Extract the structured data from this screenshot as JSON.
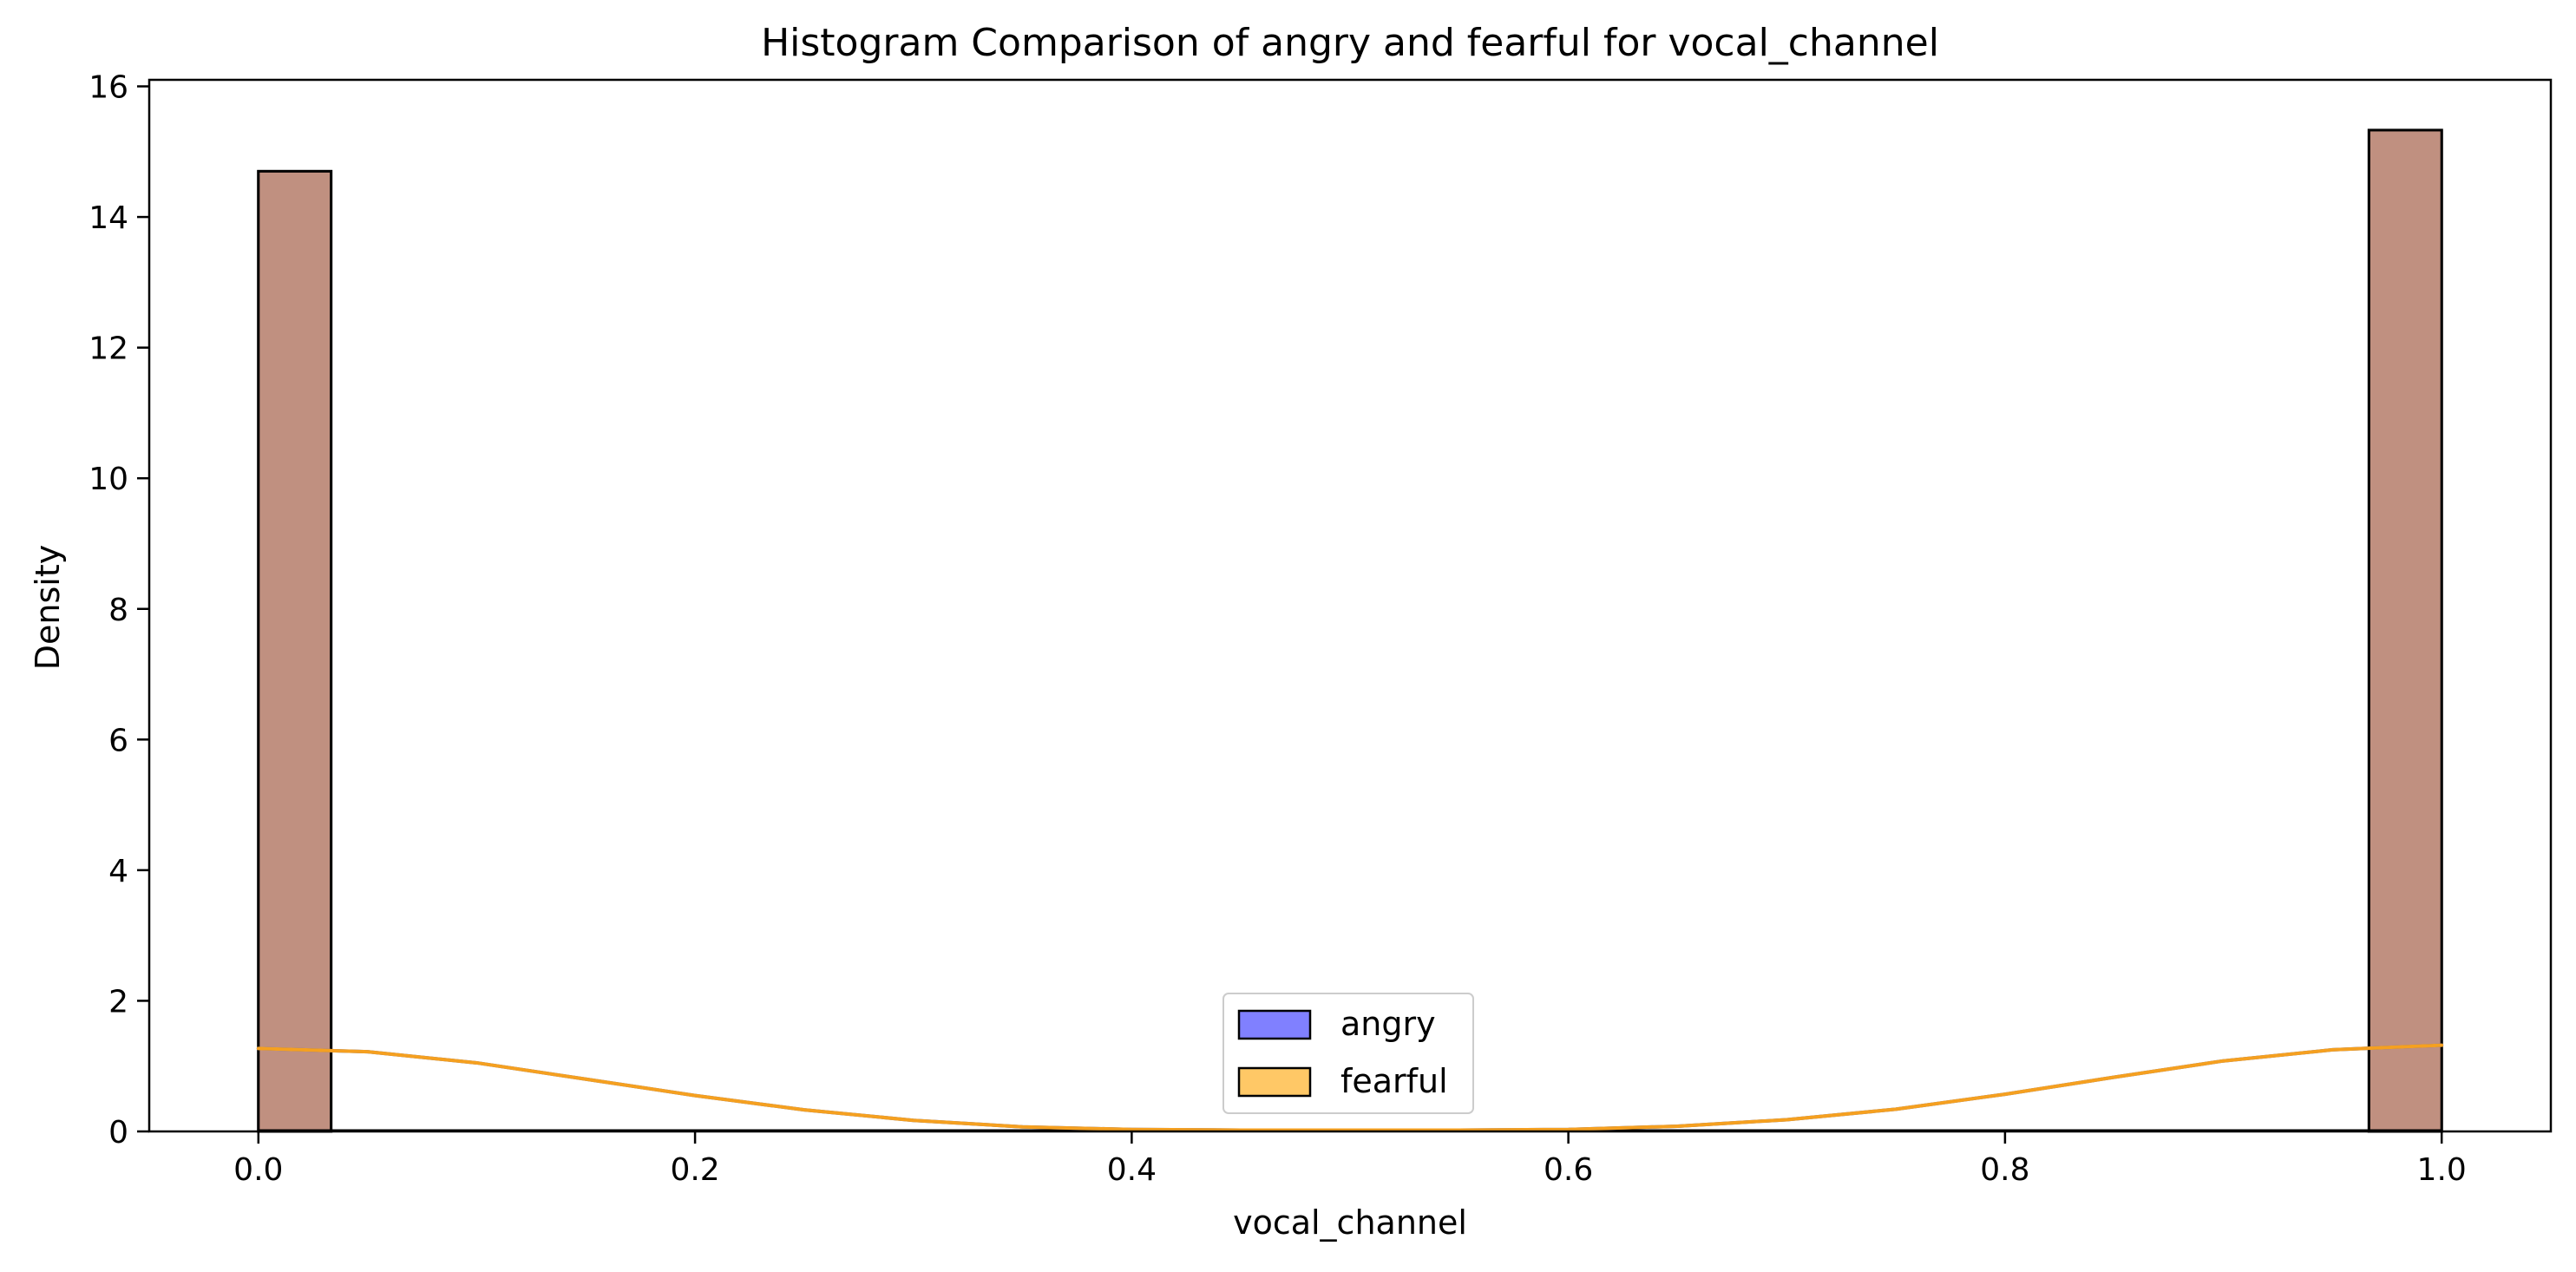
{
  "chart_data": {
    "type": "bar",
    "subtype": "histogram-with-kde",
    "title": "Histogram Comparison of angry and fearful for vocal_channel",
    "xlabel": "vocal_channel",
    "ylabel": "Density",
    "xlim": [
      -0.05,
      1.05
    ],
    "ylim": [
      0,
      16.1
    ],
    "xticks": [
      0.0,
      0.2,
      0.4,
      0.6,
      0.8,
      1.0
    ],
    "xtick_labels": [
      "0.0",
      "0.2",
      "0.4",
      "0.6",
      "0.8",
      "1.0"
    ],
    "yticks": [
      0,
      2,
      4,
      6,
      8,
      10,
      12,
      14,
      16
    ],
    "ytick_labels": [
      "0",
      "2",
      "4",
      "6",
      "8",
      "10",
      "12",
      "14",
      "16"
    ],
    "bin_width": 0.0333,
    "grid": false,
    "legend_position": "bottom-center",
    "series": [
      {
        "name": "angry",
        "color": "#8080ff",
        "bins": [
          {
            "x0": 0.0,
            "x1": 0.0333,
            "density": 14.7
          },
          {
            "x0": 0.9667,
            "x1": 1.0,
            "density": 15.33
          }
        ],
        "kde_color": "#4060c8",
        "kde": {
          "x": [
            0.0,
            0.05,
            0.1,
            0.15,
            0.2,
            0.25,
            0.3,
            0.35,
            0.4,
            0.45,
            0.5,
            0.55,
            0.6,
            0.65,
            0.7,
            0.75,
            0.8,
            0.85,
            0.9,
            0.95,
            1.0
          ],
          "y": [
            1.27,
            1.22,
            1.05,
            0.8,
            0.55,
            0.33,
            0.17,
            0.07,
            0.03,
            0.02,
            0.02,
            0.02,
            0.03,
            0.08,
            0.18,
            0.34,
            0.57,
            0.83,
            1.08,
            1.25,
            1.32
          ]
        }
      },
      {
        "name": "fearful",
        "color": "#ffc866",
        "bins": [
          {
            "x0": 0.0,
            "x1": 0.0333,
            "density": 14.7
          },
          {
            "x0": 0.9667,
            "x1": 1.0,
            "density": 15.33
          }
        ],
        "kde_color": "#f5a020",
        "kde": {
          "x": [
            0.0,
            0.05,
            0.1,
            0.15,
            0.2,
            0.25,
            0.3,
            0.35,
            0.4,
            0.45,
            0.5,
            0.55,
            0.6,
            0.65,
            0.7,
            0.75,
            0.8,
            0.85,
            0.9,
            0.95,
            1.0
          ],
          "y": [
            1.27,
            1.22,
            1.05,
            0.8,
            0.55,
            0.33,
            0.17,
            0.07,
            0.03,
            0.02,
            0.02,
            0.02,
            0.03,
            0.08,
            0.18,
            0.34,
            0.57,
            0.83,
            1.08,
            1.25,
            1.32
          ]
        }
      }
    ],
    "overlap_color": "#c09080"
  }
}
